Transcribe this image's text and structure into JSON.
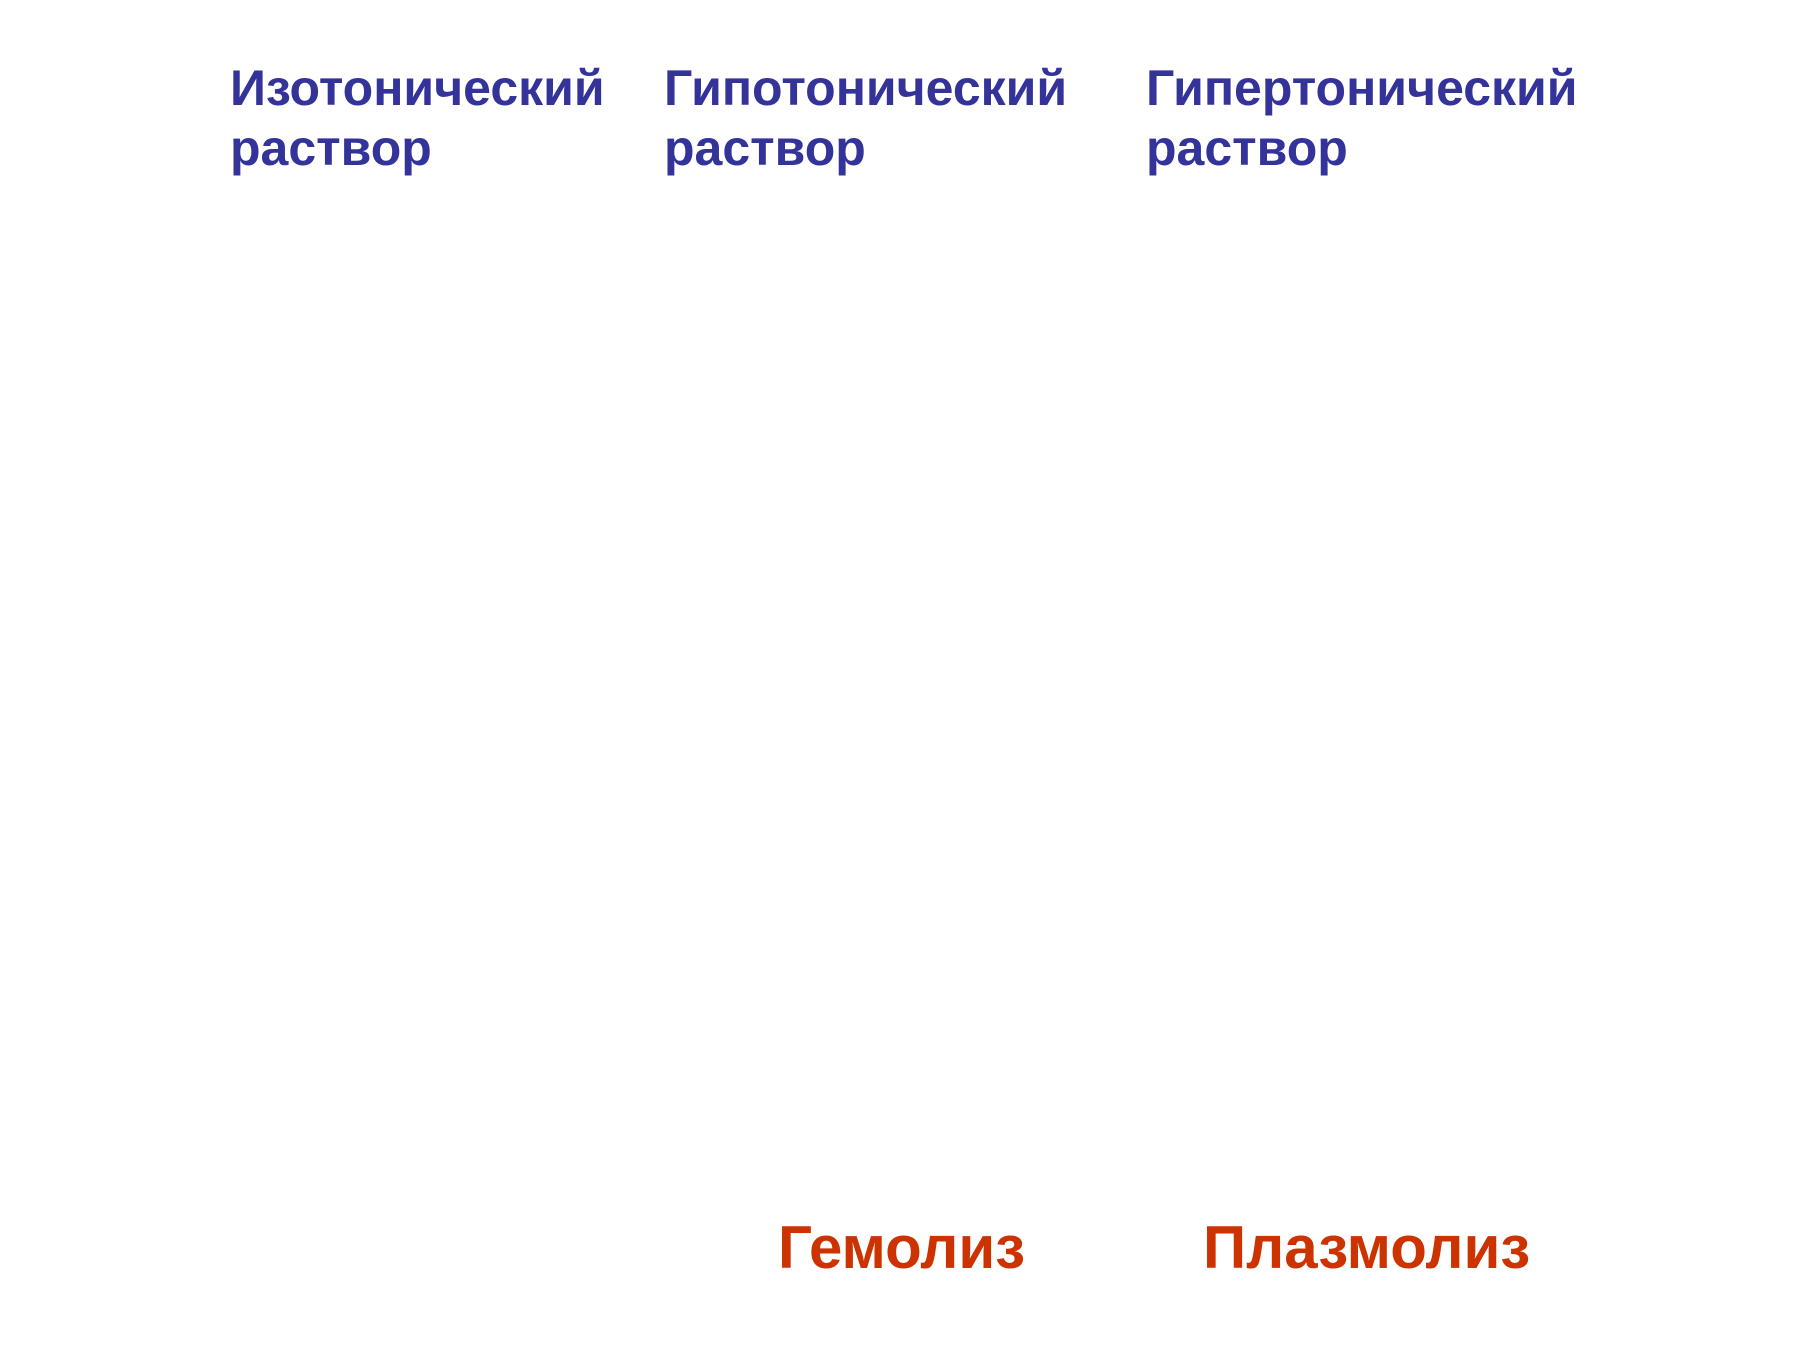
{
  "columns": [
    {
      "title": [
        "Изотонический",
        "раствор"
      ]
    },
    {
      "title": [
        "Гипотонический",
        "раствор"
      ],
      "result": "Гемолиз"
    },
    {
      "title": [
        "Гипертонический",
        "раствор"
      ],
      "result": "Плазмолиз"
    }
  ]
}
